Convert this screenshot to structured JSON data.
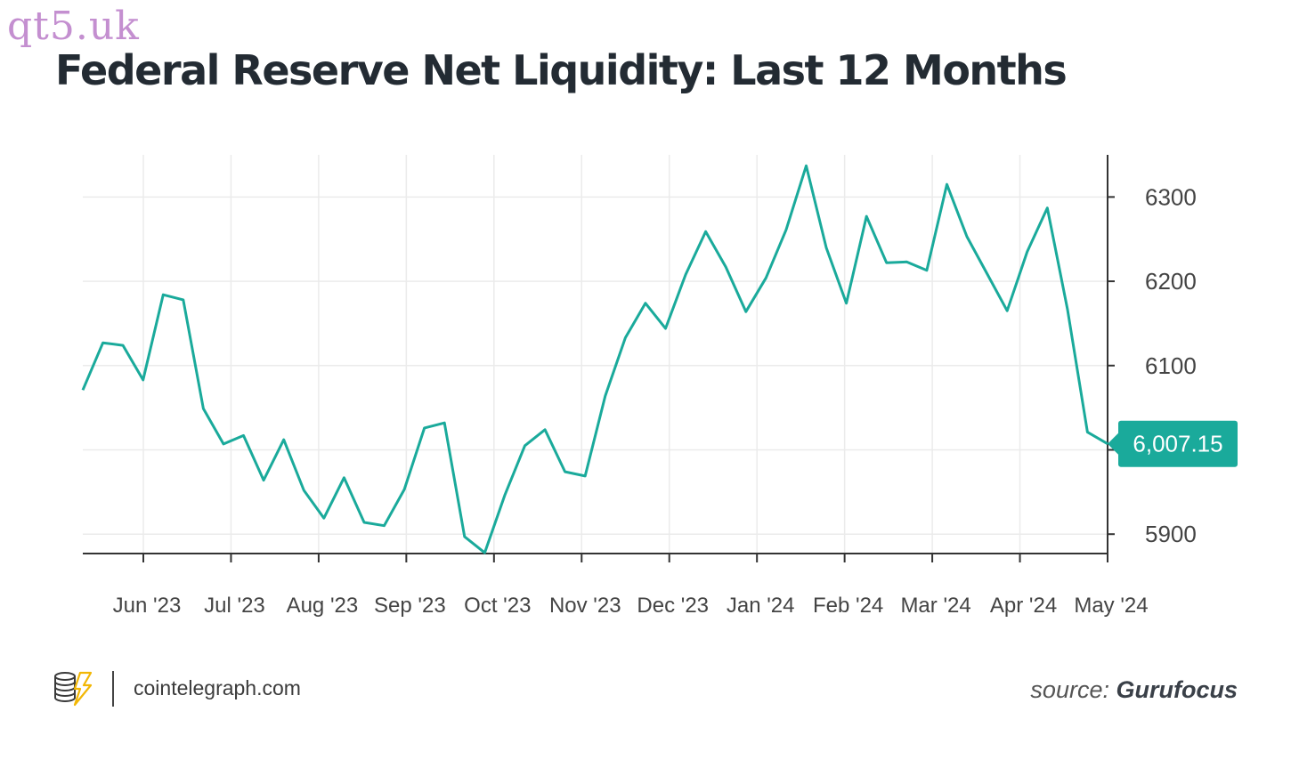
{
  "watermark": "qt5.uk",
  "footer": {
    "site": "cointelegraph.com",
    "source_label": "source:",
    "source_name": "Gurufocus"
  },
  "colors": {
    "line": "#1aaa9b",
    "axis": "#333333",
    "grid": "#ebebeb",
    "tick_text": "#444444",
    "title": "#232b33"
  },
  "icons": {
    "logo": "coins-lightning-icon"
  },
  "chart_data": {
    "type": "line",
    "title": "Federal Reserve Net Liquidity: Last 12 Months",
    "xlabel": "",
    "ylabel": "",
    "ylim": [
      5877,
      6350
    ],
    "yticks": [
      5900,
      6100,
      6200,
      6300
    ],
    "grid": true,
    "y_axis_position": "right",
    "x_tick_labels": [
      "Jun '23",
      "Jul '23",
      "Aug '23",
      "Sep '23",
      "Oct '23",
      "Nov '23",
      "Dec '23",
      "Jan '24",
      "Feb '24",
      "Mar '24",
      "Apr '24",
      "May '24"
    ],
    "last_value_label": "6,007.15",
    "series": [
      {
        "values": [
          6071,
          6127,
          6124,
          6083,
          6184,
          6178,
          6049,
          6007,
          6017,
          5964,
          6012,
          5952,
          5919,
          5967,
          5914,
          5910,
          5953,
          6026,
          6032,
          5897,
          5878,
          5946,
          6005,
          6024,
          5974,
          5969,
          6064,
          6133,
          6174,
          6144,
          6208,
          6259,
          6217,
          6164,
          6204,
          6261,
          6337,
          6240,
          6174,
          6277,
          6222,
          6223,
          6213,
          6315,
          6253,
          6209,
          6165,
          6235,
          6287,
          6167,
          6021,
          6007.15
        ]
      }
    ]
  }
}
